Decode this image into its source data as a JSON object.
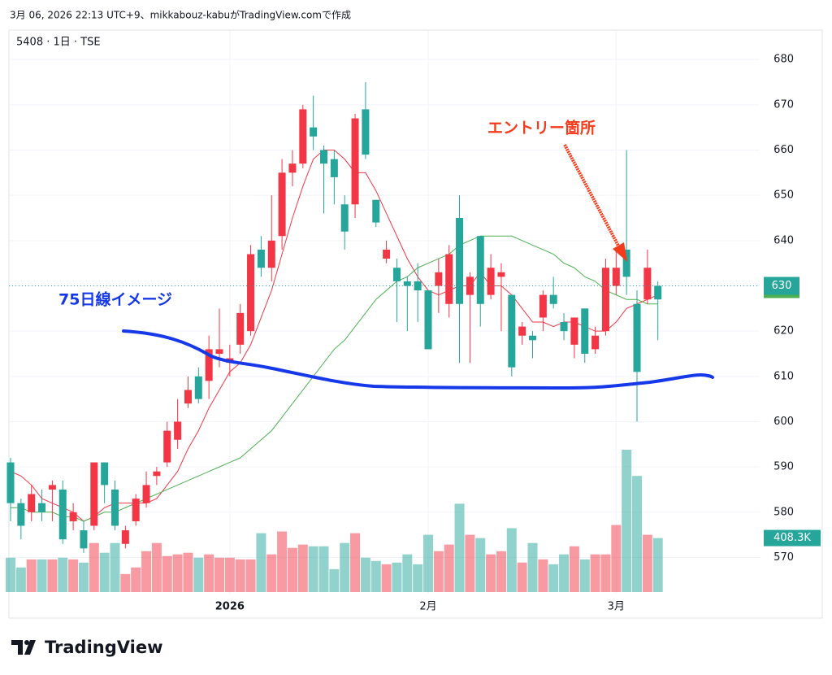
{
  "header": {
    "caption": "3月 06, 2026 22:13 UTC+9、mikkabouz-kabuがTradingView.comで作成"
  },
  "footer": {
    "brand": "TradingView"
  },
  "annotations": [
    {
      "text": "エントリー箇所"
    },
    {
      "text": "75日線イメージ"
    }
  ],
  "chart_data": {
    "type": "candlestick",
    "title": "5408 · 1日 · TSE",
    "categories": [
      null,
      null,
      null,
      null,
      null,
      null,
      null,
      null,
      null,
      null,
      null,
      null,
      null,
      null,
      null,
      null,
      null,
      null,
      null,
      null,
      null,
      "2026",
      null,
      null,
      null,
      null,
      null,
      null,
      null,
      null,
      null,
      null,
      null,
      null,
      null,
      null,
      null,
      null,
      null,
      null,
      "2月",
      null,
      null,
      null,
      null,
      null,
      null,
      null,
      null,
      null,
      null,
      null,
      null,
      null,
      null,
      null,
      null,
      null,
      "3月",
      null,
      null,
      null,
      null
    ],
    "open": [
      582,
      577,
      584,
      580,
      586,
      574,
      580,
      572,
      591,
      586,
      577,
      576,
      583,
      586,
      589,
      598,
      600,
      607,
      605,
      616,
      616,
      614,
      624,
      637,
      634,
      640,
      655,
      657,
      669,
      663,
      657,
      654,
      642,
      667,
      659,
      644,
      638,
      631,
      630,
      629,
      616,
      633,
      637,
      626,
      632,
      626,
      634,
      633,
      612,
      621,
      618,
      628,
      626,
      620,
      623,
      615,
      619,
      634,
      634,
      632,
      611,
      634,
      627
    ],
    "high": [
      592,
      583,
      586,
      585,
      587,
      587,
      582,
      578,
      591,
      591,
      587,
      577,
      584,
      589,
      590,
      600,
      605,
      610,
      612,
      619,
      625,
      617,
      626,
      639,
      641,
      650,
      658,
      660,
      670,
      672,
      661,
      660,
      650,
      668,
      675,
      649,
      640,
      636,
      632,
      635,
      629,
      636,
      639,
      650,
      633,
      641,
      637,
      635,
      628,
      622,
      620,
      629,
      632,
      624,
      623,
      625,
      621,
      636,
      638,
      660,
      629,
      638,
      631
    ],
    "low": [
      578,
      574,
      578,
      578,
      578,
      573,
      576,
      571,
      576,
      582,
      576,
      572,
      577,
      581,
      586,
      590,
      594,
      603,
      604,
      605,
      612,
      610,
      615,
      619,
      632,
      631,
      638,
      652,
      656,
      660,
      646,
      648,
      638,
      645,
      658,
      643,
      635,
      622,
      620,
      622,
      616,
      624,
      623,
      613,
      613,
      621,
      627,
      620,
      610,
      617,
      614,
      620,
      625,
      618,
      614,
      613,
      615,
      619,
      628,
      628,
      600,
      626,
      618
    ],
    "close": [
      591,
      582,
      580,
      582,
      585,
      585,
      578,
      576,
      577,
      591,
      585,
      573,
      578,
      582,
      588,
      591,
      596,
      604,
      610,
      609,
      615,
      613,
      617,
      620,
      638,
      634,
      641,
      655,
      657,
      665,
      660,
      658,
      648,
      648,
      669,
      649,
      636,
      634,
      631,
      631,
      629,
      630,
      626,
      645,
      628,
      641,
      628,
      632,
      628,
      619,
      619,
      623,
      628,
      622,
      617,
      625,
      616,
      620,
      630,
      638,
      626,
      627,
      630
    ],
    "up_color": "#26a69a",
    "down_color": "#f23645",
    "overlays": [
      {
        "color": "#f23645",
        "values": [
          589,
          588,
          586,
          583,
          582,
          581,
          580,
          578,
          579,
          581,
          582,
          582,
          582,
          582,
          583,
          586,
          589,
          594,
          598,
          603,
          607,
          611,
          613,
          617,
          623,
          629,
          637,
          645,
          652,
          658,
          660,
          660,
          658,
          655,
          655,
          651,
          646,
          641,
          636,
          632,
          629,
          628,
          629,
          630,
          630,
          633,
          630,
          630,
          628,
          625,
          622,
          622,
          621,
          622,
          622,
          621,
          620,
          620,
          622,
          625,
          626,
          627,
          628
        ]
      },
      {
        "color": "#4caf50",
        "values": [
          581,
          581,
          580,
          580,
          580,
          579,
          579,
          578,
          579,
          580,
          580,
          581,
          582,
          583,
          584,
          585,
          586,
          587,
          588,
          589,
          590,
          591,
          592,
          594,
          596,
          598,
          601,
          604,
          607,
          610,
          613,
          616,
          618,
          621,
          624,
          627,
          629,
          631,
          632,
          634,
          635,
          636,
          637,
          639,
          640,
          641,
          641,
          641,
          641,
          640,
          639,
          638,
          637,
          635,
          634,
          632,
          631,
          629,
          628,
          627,
          627,
          626,
          626
        ]
      }
    ],
    "volume": {
      "values": [
        260,
        186,
        247,
        247,
        247,
        260,
        247,
        223,
        371,
        297,
        371,
        136,
        186,
        309,
        371,
        272,
        285,
        297,
        260,
        285,
        260,
        260,
        247,
        247,
        445,
        285,
        458,
        334,
        359,
        346,
        346,
        173,
        371,
        445,
        260,
        235,
        210,
        223,
        285,
        210,
        433,
        309,
        359,
        668,
        433,
        408,
        285,
        309,
        483,
        223,
        371,
        247,
        210,
        285,
        346,
        247,
        285,
        285,
        507,
        1076,
        878,
        433,
        408.3
      ],
      "last_label": "408.3K"
    },
    "ylim": [
      562,
      686.5
    ],
    "yticks": [
      570,
      580,
      590,
      600,
      610,
      620,
      630,
      640,
      650,
      660,
      670,
      680
    ],
    "grid": true
  }
}
